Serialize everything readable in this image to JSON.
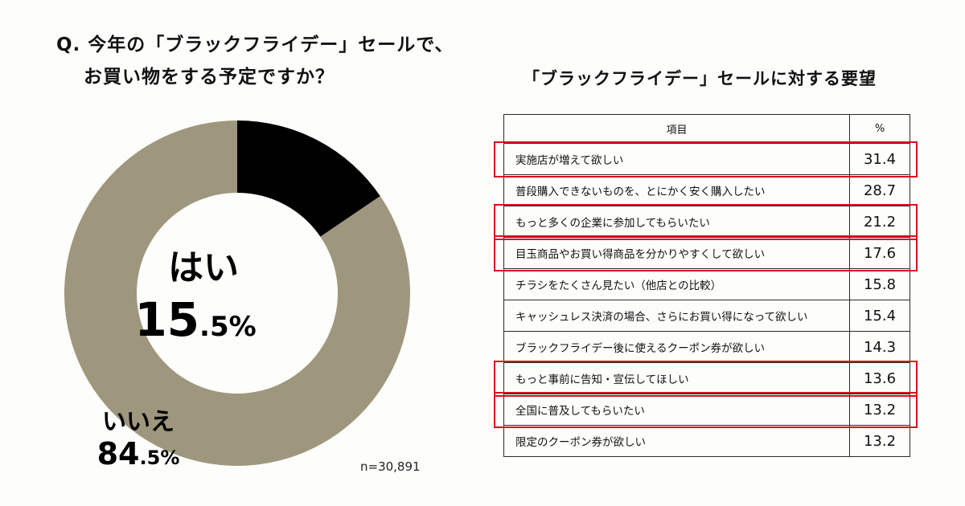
{
  "question": {
    "line1": "Q. 今年の「ブラックフライデー」セールで、",
    "line2": "お買い物をする予定ですか？"
  },
  "chart_data": [
    {
      "type": "pie",
      "variant": "donut",
      "slices": [
        {
          "label": "はい",
          "value": 15.5,
          "value_text": "15.5%",
          "color": "#000000"
        },
        {
          "label": "いいえ",
          "value": 84.5,
          "value_text": "84.5%",
          "color": "#9e977d"
        }
      ],
      "note": "n=30,891"
    },
    {
      "type": "table",
      "title": "「ブラックフライデー」セールに対する要望",
      "columns": [
        "項目",
        "%"
      ],
      "rows": [
        {
          "item": "実施店が増えて欲しい",
          "value": "31.4",
          "highlighted": true
        },
        {
          "item": "普段購入できないものを、とにかく安く購入したい",
          "value": "28.7",
          "highlighted": false
        },
        {
          "item": "もっと多くの企業に参加してもらいたい",
          "value": "21.2",
          "highlighted": true
        },
        {
          "item": "目玉商品やお買い得商品を分かりやすくして欲しい",
          "value": "17.6",
          "highlighted": true
        },
        {
          "item": "チラシをたくさん見たい（他店との比較）",
          "value": "15.8",
          "highlighted": false
        },
        {
          "item": "キャッシュレス決済の場合、さらにお買い得になって欲しい",
          "value": "15.4",
          "highlighted": false
        },
        {
          "item": "ブラックフライデー後に使えるクーポン券が欲しい",
          "value": "14.3",
          "highlighted": false
        },
        {
          "item": "もっと事前に告知・宣伝してほしい",
          "value": "13.6",
          "highlighted": true
        },
        {
          "item": "全国に普及してもらいたい",
          "value": "13.2",
          "highlighted": true
        },
        {
          "item": "限定のクーポン券が欲しい",
          "value": "13.2",
          "highlighted": false
        }
      ],
      "highlight_color": "#d7101e"
    }
  ]
}
